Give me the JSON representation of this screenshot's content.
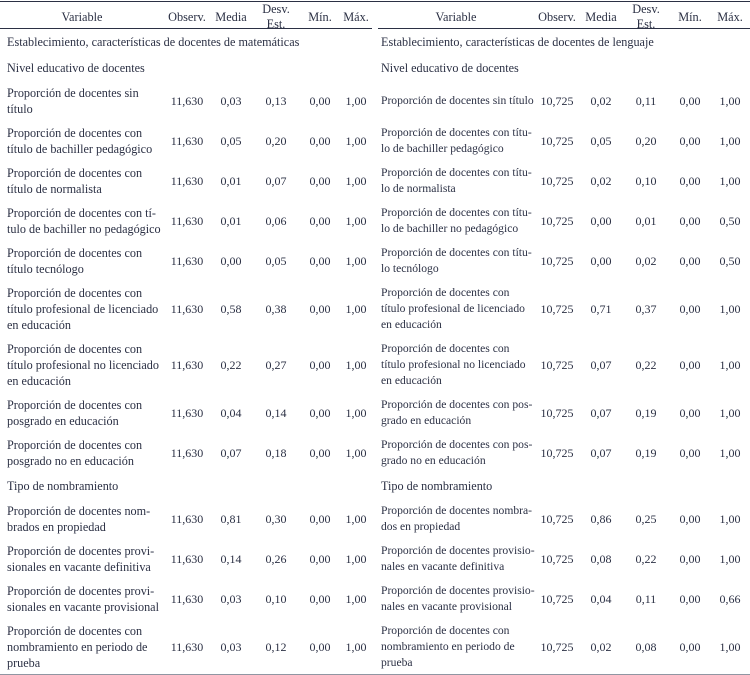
{
  "colors": {
    "text": "#2b3044",
    "rule": "#2b3044",
    "bottom_rule": "#9096a2"
  },
  "columns": [
    "Variable",
    "Observ.",
    "Media",
    "Desv. Est.",
    "Mín.",
    "Máx."
  ],
  "tables": {
    "left": {
      "entries": [
        {
          "type": "section",
          "text": "Establecimiento, características de docentes de matemáticas"
        },
        {
          "type": "section",
          "text": "Nivel educativo de docentes"
        },
        {
          "type": "row",
          "label_lines": [
            "Proporción de docentes sin",
            "título"
          ],
          "observ": "11,630",
          "media": "0,03",
          "desv": "0,13",
          "min": "0,00",
          "max": "1,00"
        },
        {
          "type": "row",
          "label_lines": [
            "Proporción de docentes con",
            "título de bachiller pedagógico"
          ],
          "observ": "11,630",
          "media": "0,05",
          "desv": "0,20",
          "min": "0,00",
          "max": "1,00"
        },
        {
          "type": "row",
          "label_lines": [
            "Proporción de docentes con",
            "título de normalista"
          ],
          "observ": "11,630",
          "media": "0,01",
          "desv": "0,07",
          "min": "0,00",
          "max": "1,00"
        },
        {
          "type": "row",
          "label_lines": [
            "Proporción de docentes con tí-",
            "tulo de bachiller no pedagógico"
          ],
          "observ": "11,630",
          "media": "0,01",
          "desv": "0,06",
          "min": "0,00",
          "max": "1,00"
        },
        {
          "type": "row",
          "label_lines": [
            "Proporción de docentes con",
            "título tecnólogo"
          ],
          "observ": "11,630",
          "media": "0,00",
          "desv": "0,05",
          "min": "0,00",
          "max": "1,00"
        },
        {
          "type": "row",
          "label_lines": [
            "Proporción de docentes con",
            "título profesional de licenciado",
            "en educación"
          ],
          "observ": "11,630",
          "media": "0,58",
          "desv": "0,38",
          "min": "0,00",
          "max": "1,00"
        },
        {
          "type": "row",
          "label_lines": [
            "Proporción de docentes con",
            "título profesional no licenciado",
            "en educación"
          ],
          "observ": "11,630",
          "media": "0,22",
          "desv": "0,27",
          "min": "0,00",
          "max": "1,00"
        },
        {
          "type": "row",
          "label_lines": [
            "Proporción de docentes con",
            "posgrado en educación"
          ],
          "observ": "11,630",
          "media": "0,04",
          "desv": "0,14",
          "min": "0,00",
          "max": "1,00"
        },
        {
          "type": "row",
          "label_lines": [
            "Proporción de docentes con",
            "posgrado no en educación"
          ],
          "observ": "11,630",
          "media": "0,07",
          "desv": "0,18",
          "min": "0,00",
          "max": "1,00"
        },
        {
          "type": "section",
          "text": "Tipo de nombramiento"
        },
        {
          "type": "row",
          "label_lines": [
            "Proporción de docentes nom-",
            "brados en propiedad"
          ],
          "observ": "11,630",
          "media": "0,81",
          "desv": "0,30",
          "min": "0,00",
          "max": "1,00"
        },
        {
          "type": "row",
          "label_lines": [
            "Proporción de docentes provi-",
            "sionales en vacante definitiva"
          ],
          "observ": "11,630",
          "media": "0,14",
          "desv": "0,26",
          "min": "0,00",
          "max": "1,00"
        },
        {
          "type": "row",
          "label_lines": [
            "Proporción de docentes provi-",
            "sionales en vacante provisional"
          ],
          "observ": "11,630",
          "media": "0,03",
          "desv": "0,10",
          "min": "0,00",
          "max": "1,00"
        },
        {
          "type": "row",
          "label_lines": [
            "Proporción de docentes con",
            "nombramiento en periodo de",
            "prueba"
          ],
          "observ": "11,630",
          "media": "0,03",
          "desv": "0,12",
          "min": "0,00",
          "max": "1,00"
        }
      ]
    },
    "right": {
      "entries": [
        {
          "type": "section",
          "text": "Establecimiento, características de docentes de lenguaje"
        },
        {
          "type": "section",
          "text": "Nivel educativo de docentes"
        },
        {
          "type": "row",
          "label_lines": [
            "Proporción de docentes sin título"
          ],
          "observ": "10,725",
          "media": "0,02",
          "desv": "0,11",
          "min": "0,00",
          "max": "1,00"
        },
        {
          "type": "row",
          "label_lines": [
            "Proporción de docentes con títu-",
            "lo de bachiller pedagógico"
          ],
          "observ": "10,725",
          "media": "0,05",
          "desv": "0,20",
          "min": "0,00",
          "max": "1,00"
        },
        {
          "type": "row",
          "label_lines": [
            "Proporción de docentes con títu-",
            "lo de normalista"
          ],
          "observ": "10,725",
          "media": "0,02",
          "desv": "0,10",
          "min": "0,00",
          "max": "1,00"
        },
        {
          "type": "row",
          "label_lines": [
            "Proporción de docentes con títu-",
            "lo de bachiller no pedagógico"
          ],
          "observ": "10,725",
          "media": "0,00",
          "desv": "0,01",
          "min": "0,00",
          "max": "0,50"
        },
        {
          "type": "row",
          "label_lines": [
            "Proporción de docentes con títu-",
            "lo tecnólogo"
          ],
          "observ": "10,725",
          "media": "0,00",
          "desv": "0,02",
          "min": "0,00",
          "max": "0,50"
        },
        {
          "type": "row",
          "label_lines": [
            "Proporción de docentes con",
            "título profesional de licenciado",
            "en educación"
          ],
          "observ": "10,725",
          "media": "0,71",
          "desv": "0,37",
          "min": "0,00",
          "max": "1,00"
        },
        {
          "type": "row",
          "label_lines": [
            "Proporción de docentes con",
            "título profesional no licenciado",
            "en educación"
          ],
          "observ": "10,725",
          "media": "0,07",
          "desv": "0,22",
          "min": "0,00",
          "max": "1,00"
        },
        {
          "type": "row",
          "label_lines": [
            "Proporción de docentes con pos-",
            "grado en educación"
          ],
          "observ": "10,725",
          "media": "0,07",
          "desv": "0,19",
          "min": "0,00",
          "max": "1,00"
        },
        {
          "type": "row",
          "label_lines": [
            "Proporción de docentes con pos-",
            "grado no en educación"
          ],
          "observ": "10,725",
          "media": "0,07",
          "desv": "0,19",
          "min": "0,00",
          "max": "1,00"
        },
        {
          "type": "section",
          "text": "Tipo de nombramiento"
        },
        {
          "type": "row",
          "label_lines": [
            "Proporción de docentes nombra-",
            "dos en propiedad"
          ],
          "observ": "10,725",
          "media": "0,86",
          "desv": "0,25",
          "min": "0,00",
          "max": "1,00"
        },
        {
          "type": "row",
          "label_lines": [
            "Proporción de docentes provisio-",
            "nales en vacante definitiva"
          ],
          "observ": "10,725",
          "media": "0,08",
          "desv": "0,22",
          "min": "0,00",
          "max": "1,00"
        },
        {
          "type": "row",
          "label_lines": [
            "Proporción de docentes provisio-",
            "nales en vacante provisional"
          ],
          "observ": "10,725",
          "media": "0,04",
          "desv": "0,11",
          "min": "0,00",
          "max": "0,66"
        },
        {
          "type": "row",
          "label_lines": [
            "Proporción de docentes con",
            "nombramiento en periodo de",
            "prueba"
          ],
          "observ": "10,725",
          "media": "0,02",
          "desv": "0,08",
          "min": "0,00",
          "max": "1,00"
        }
      ]
    }
  }
}
